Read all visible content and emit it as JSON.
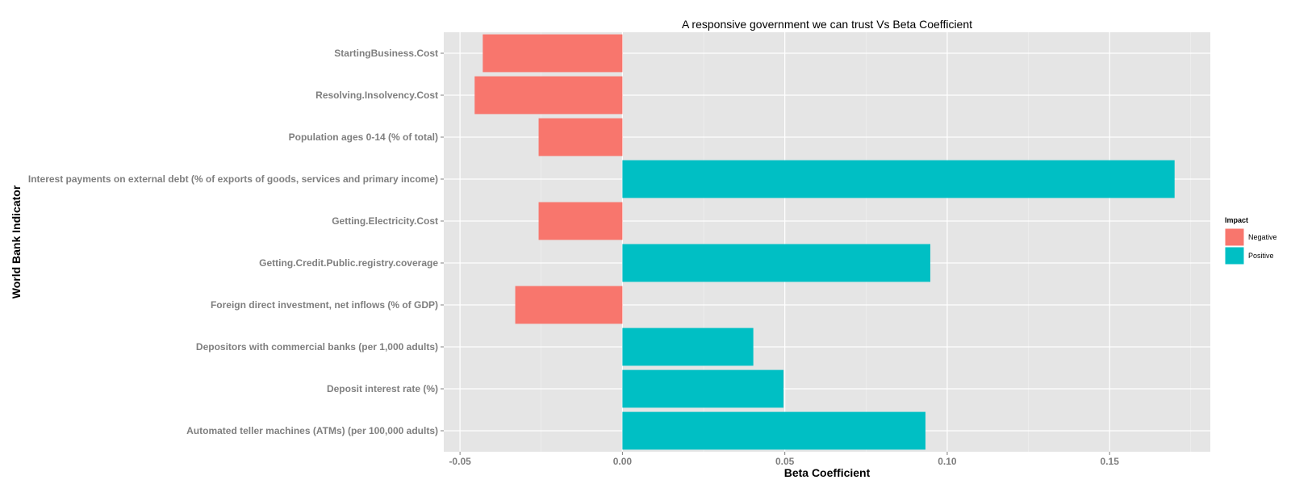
{
  "chart_data": {
    "type": "bar",
    "orientation": "horizontal",
    "title": "A responsive government we can trust Vs Beta Coefficient",
    "xlabel": "Beta Coefficient",
    "ylabel": "World Bank Indicator",
    "xlim": [
      -0.055,
      0.181
    ],
    "xticks": [
      -0.05,
      0.0,
      0.05,
      0.1,
      0.15
    ],
    "xtick_labels": [
      "-0.05",
      "0.00",
      "0.05",
      "0.10",
      "0.15"
    ],
    "grid": true,
    "legend_position": "right",
    "legend": {
      "title": "Impact",
      "entries": [
        {
          "label": "Negative",
          "color": "#F8766D"
        },
        {
          "label": "Positive",
          "color": "#00BFC4"
        }
      ]
    },
    "bars": [
      {
        "category": "StartingBusiness.Cost",
        "value": -0.043,
        "impact": "Negative"
      },
      {
        "category": "Resolving.Insolvency.Cost",
        "value": -0.0455,
        "impact": "Negative"
      },
      {
        "category": "Population ages 0-14 (% of total)",
        "value": -0.0258,
        "impact": "Negative"
      },
      {
        "category": "Interest payments on external debt (% of exports of goods, services and primary income)",
        "value": 0.17,
        "impact": "Positive"
      },
      {
        "category": "Getting.Electricity.Cost",
        "value": -0.0258,
        "impact": "Negative"
      },
      {
        "category": "Getting.Credit.Public.registry.coverage",
        "value": 0.0948,
        "impact": "Positive"
      },
      {
        "category": "Foreign direct investment, net inflows (% of GDP)",
        "value": -0.033,
        "impact": "Negative"
      },
      {
        "category": "Depositors with commercial banks (per 1,000 adults)",
        "value": 0.0403,
        "impact": "Positive"
      },
      {
        "category": "Deposit interest rate (%)",
        "value": 0.0496,
        "impact": "Positive"
      },
      {
        "category": "Automated teller machines (ATMs) (per 100,000 adults)",
        "value": 0.0933,
        "impact": "Positive"
      }
    ],
    "colors": {
      "Negative": "#F8766D",
      "Positive": "#00BFC4",
      "panel": "#E5E5E5",
      "grid": "#FFFFFF"
    }
  }
}
